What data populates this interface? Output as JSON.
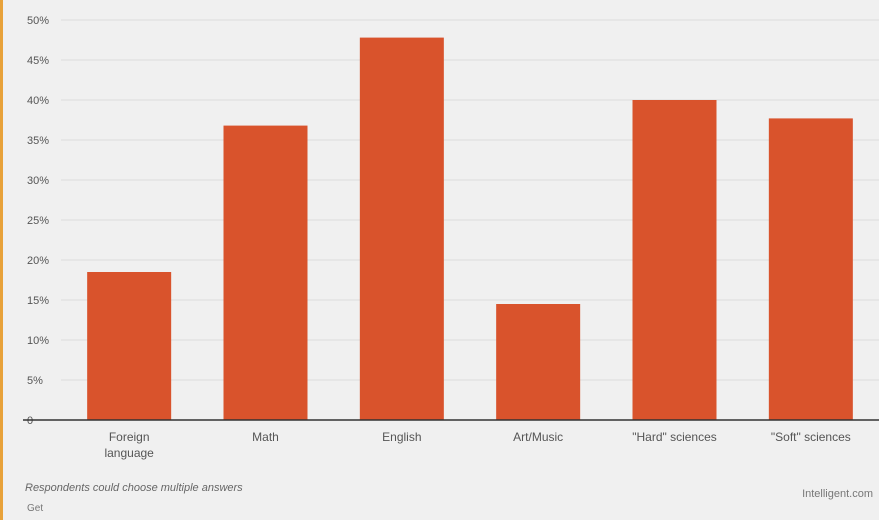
{
  "chart_data": {
    "type": "bar",
    "categories": [
      [
        "Foreign",
        "language"
      ],
      [
        "Math"
      ],
      [
        "English"
      ],
      [
        "Art/Music"
      ],
      [
        "\"Hard\" sciences"
      ],
      [
        "\"Soft\" sciences"
      ]
    ],
    "values": [
      18.5,
      36.8,
      47.8,
      14.5,
      40,
      37.7
    ],
    "ylim": [
      0,
      50
    ],
    "yticks": [
      0,
      5,
      10,
      15,
      20,
      25,
      30,
      35,
      40,
      45,
      50
    ],
    "ytick_labels": [
      "0",
      "5%",
      "10%",
      "15%",
      "20%",
      "25%",
      "30%",
      "35%",
      "40%",
      "45%",
      "50%"
    ],
    "bar_color": "#d9532c",
    "grid": true
  },
  "footnote": "Respondents could choose multiple answers",
  "source": "Get",
  "brand": "Intelligent.com"
}
